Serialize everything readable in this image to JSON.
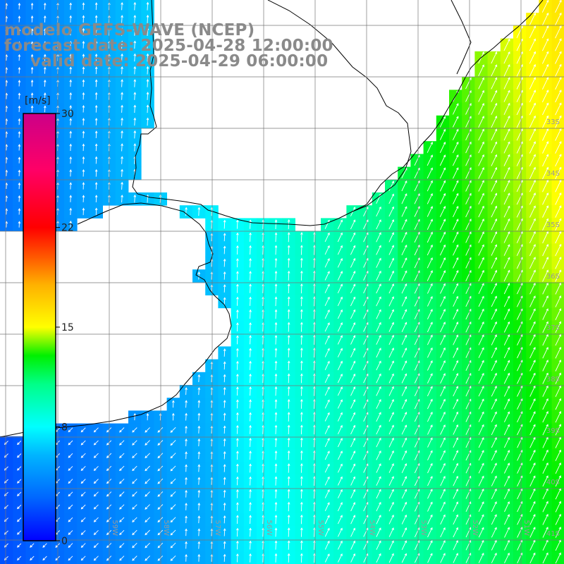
{
  "title": {
    "model": "modelo GEFS-WAVE (NCEP)",
    "forecast": "forecast date: 2025-04-28 12:00:00",
    "valid": "valid date: 2025-04-29 06:00:00"
  },
  "colorbar": {
    "unit": "[m/s]",
    "ticks": [
      "30",
      "22",
      "15",
      "8",
      "0"
    ],
    "tick_values": [
      30,
      22,
      15,
      8,
      0
    ],
    "min": 0,
    "max": 30,
    "colors": {
      "0": "#0000ff",
      "3": "#0066ff",
      "6": "#00b4ff",
      "8": "#00ffff",
      "11": "#00ff88",
      "13": "#00f000",
      "15": "#ffff00",
      "18": "#ffb000",
      "20": "#ff5500",
      "22": "#ff0000",
      "26": "#ff0066",
      "30": "#cc0088"
    }
  },
  "axis": {
    "longitude_labels": [
      "59W",
      "58W",
      "57W",
      "56W",
      "55W",
      "54W",
      "53W",
      "52W",
      "51W"
    ],
    "latitude_labels": [
      "33S",
      "34S",
      "35S",
      "36S",
      "37S",
      "38S",
      "39S",
      "40S",
      "41S"
    ]
  },
  "field": {
    "variable": "wind speed",
    "units": "m/s",
    "description_of_region": "Rio de la Plata / Uruguay / southern Brazil coast"
  },
  "colors": {
    "land": "#ffffff",
    "coast": "#000000",
    "grid": "#777777",
    "arrows": "#ffffff",
    "title": "#8a8a8a"
  }
}
